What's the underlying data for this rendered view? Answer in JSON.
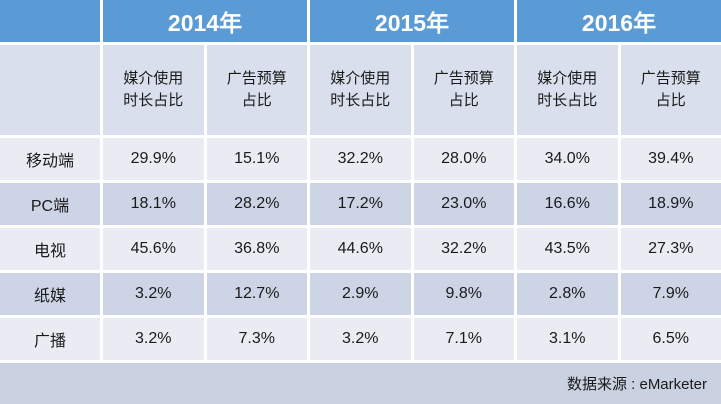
{
  "colors": {
    "header_blue": "#5b9bd5",
    "subheader_bg": "#d9dfec",
    "row_light": "#eaecf4",
    "row_dark": "#ccd4e6",
    "footer_bg": "#cad2e1",
    "gutter": "#ffffff",
    "text_dark": "#1a1a1a",
    "header_text": "#ffffff"
  },
  "header": {
    "years": [
      "2014年",
      "2015年",
      "2016年"
    ],
    "subheader_media": "媒介使用\n时长占比",
    "subheader_budget": "广告预算\n占比"
  },
  "table": {
    "rows": [
      {
        "label": "移动端",
        "values": [
          "29.9%",
          "15.1%",
          "32.2%",
          "28.0%",
          "34.0%",
          "39.4%"
        ]
      },
      {
        "label": "PC端",
        "values": [
          "18.1%",
          "28.2%",
          "17.2%",
          "23.0%",
          "16.6%",
          "18.9%"
        ]
      },
      {
        "label": "电视",
        "values": [
          "45.6%",
          "36.8%",
          "44.6%",
          "32.2%",
          "43.5%",
          "27.3%"
        ]
      },
      {
        "label": "纸媒",
        "values": [
          "3.2%",
          "12.7%",
          "2.9%",
          "9.8%",
          "2.8%",
          "7.9%"
        ]
      },
      {
        "label": "广播",
        "values": [
          "3.2%",
          "7.3%",
          "3.2%",
          "7.1%",
          "3.1%",
          "6.5%"
        ]
      }
    ]
  },
  "footer": {
    "source": "数据来源 : eMarketer"
  },
  "chart_data": {
    "type": "table",
    "column_groups": [
      "2014年",
      "2015年",
      "2016年"
    ],
    "sub_columns": [
      "媒介使用时长占比",
      "广告预算占比"
    ],
    "row_labels": [
      "移动端",
      "PC端",
      "电视",
      "纸媒",
      "广播"
    ],
    "series": [
      {
        "name": "2014年 媒介使用时长占比",
        "values": [
          29.9,
          18.1,
          45.6,
          3.2,
          3.2
        ]
      },
      {
        "name": "2014年 广告预算占比",
        "values": [
          15.1,
          28.2,
          36.8,
          12.7,
          7.3
        ]
      },
      {
        "name": "2015年 媒介使用时长占比",
        "values": [
          32.2,
          17.2,
          44.6,
          2.9,
          3.2
        ]
      },
      {
        "name": "2015年 广告预算占比",
        "values": [
          28.0,
          23.0,
          32.2,
          9.8,
          7.1
        ]
      },
      {
        "name": "2016年 媒介使用时长占比",
        "values": [
          34.0,
          16.6,
          43.5,
          2.8,
          3.1
        ]
      },
      {
        "name": "2016年 广告预算占比",
        "values": [
          39.4,
          18.9,
          27.3,
          7.9,
          6.5
        ]
      }
    ],
    "unit": "%",
    "source": "数据来源 : eMarketer"
  }
}
